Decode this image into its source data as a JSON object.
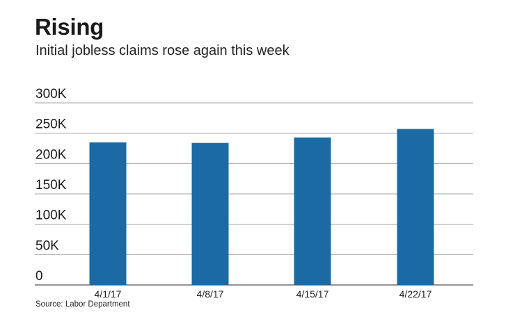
{
  "title": "Rising",
  "subtitle": "Initial jobless claims rose again this week",
  "source": "Source: Labor Department",
  "colors": {
    "bar": "#1b6aa3",
    "grid": "#a0a0a0",
    "baseline": "#555555"
  },
  "chart_data": {
    "type": "bar",
    "categories": [
      "4/1/17",
      "4/8/17",
      "4/15/17",
      "4/22/17"
    ],
    "values": [
      235000,
      234000,
      243000,
      257000
    ],
    "ylim": [
      0,
      300000
    ],
    "yticks": [
      0,
      50000,
      100000,
      150000,
      200000,
      250000,
      300000
    ],
    "ytick_labels": [
      "0",
      "50K",
      "100K",
      "150K",
      "200K",
      "250K",
      "300K"
    ],
    "grid": true,
    "xlabel": "",
    "ylabel": ""
  }
}
